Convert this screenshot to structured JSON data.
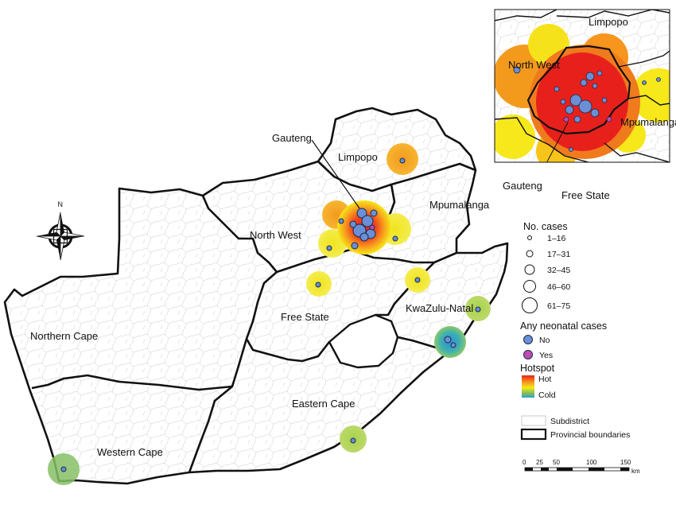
{
  "map": {
    "provinces": {
      "northern_cape": "Northern Cape",
      "western_cape": "Western Cape",
      "eastern_cape": "Eastern Cape",
      "free_state": "Free State",
      "kwazulu_natal": "KwaZulu-Natal",
      "north_west": "North West",
      "limpopo": "Limpopo",
      "mpumalanga": "Mpumalanga",
      "gauteng": "Gauteng"
    },
    "north_arrow": "N",
    "colors": {
      "hot": "#e8201c",
      "warm": "#f7951d",
      "mild": "#f6e81a",
      "cool": "#8cc24a",
      "cold": "#3aa6b9",
      "case_no": "#6a8fd6",
      "case_yes": "#c04bb4"
    }
  },
  "inset": {
    "labels": {
      "limpopo": "Limpopo",
      "north_west": "North West",
      "mpumalanga": "Mpumalanga",
      "gauteng": "Gauteng",
      "free_state": "Free State"
    }
  },
  "legend": {
    "cases_title": "No. cases",
    "cases_bins": [
      "1–16",
      "17–31",
      "32–45",
      "46–60",
      "61–75"
    ],
    "neonatal_title": "Any neonatal cases",
    "neonatal_no": "No",
    "neonatal_yes": "Yes",
    "hotspot_title": "Hotspot",
    "hot_label": "Hot",
    "cold_label": "Cold",
    "subdistrict_label": "Subdistrict",
    "provincial_label": "Provincial boundaries"
  },
  "scale": {
    "ticks": [
      "0",
      "25",
      "50",
      "100",
      "150"
    ],
    "unit": "km"
  }
}
